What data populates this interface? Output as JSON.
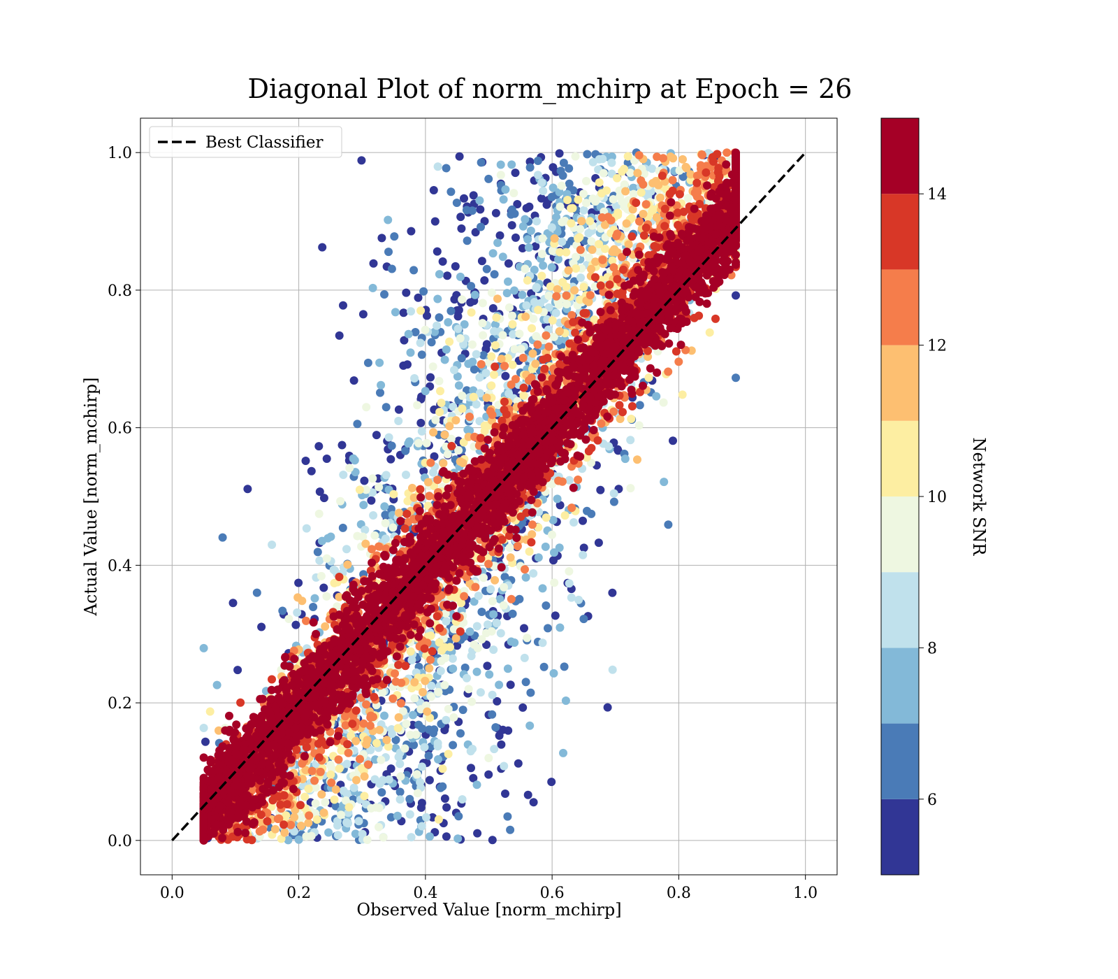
{
  "chart_data": {
    "type": "scatter",
    "title": "Diagonal Plot of norm_mchirp at Epoch = 26",
    "xlabel": "Observed Value [norm_mchirp]",
    "ylabel": "Actual Value [norm_mchirp]",
    "xlim": [
      -0.05,
      1.05
    ],
    "ylim": [
      -0.05,
      1.05
    ],
    "x_ticks": [
      "0.0",
      "0.2",
      "0.4",
      "0.6",
      "0.8",
      "1.0"
    ],
    "y_ticks": [
      "0.0",
      "0.2",
      "0.4",
      "0.6",
      "0.8",
      "1.0"
    ],
    "grid": true,
    "legend": {
      "placement": "upper-left",
      "entries": [
        "Best Classifier"
      ]
    },
    "reference_line": {
      "name": "Best Classifier",
      "style": "dashed",
      "color": "#000000",
      "x": [
        0.0,
        1.0
      ],
      "y": [
        0.0,
        1.0
      ]
    },
    "colorbar": {
      "label": "Network SNR",
      "range": [
        5,
        15
      ],
      "ticks": [
        "6",
        "8",
        "10",
        "12",
        "14"
      ],
      "bins": [
        {
          "from": 5,
          "to": 6,
          "color": "#313695"
        },
        {
          "from": 6,
          "to": 7,
          "color": "#4a7bb7"
        },
        {
          "from": 7,
          "to": 8,
          "color": "#83b9d8"
        },
        {
          "from": 8,
          "to": 9,
          "color": "#c0e1ec"
        },
        {
          "from": 9,
          "to": 10,
          "color": "#eef7e1"
        },
        {
          "from": 10,
          "to": 11,
          "color": "#fdeea2"
        },
        {
          "from": 11,
          "to": 12,
          "color": "#fdbf71"
        },
        {
          "from": 12,
          "to": 13,
          "color": "#f57d4b"
        },
        {
          "from": 13,
          "to": 14,
          "color": "#d83727"
        },
        {
          "from": 14,
          "to": 15,
          "color": "#a50026"
        }
      ]
    },
    "scatter_distribution": {
      "n_points": 9000,
      "observed_range": [
        0.05,
        0.89
      ],
      "actual_range": [
        0.0,
        1.0
      ],
      "high_snr_spread": 0.06,
      "low_snr_spread": 0.3
    }
  }
}
